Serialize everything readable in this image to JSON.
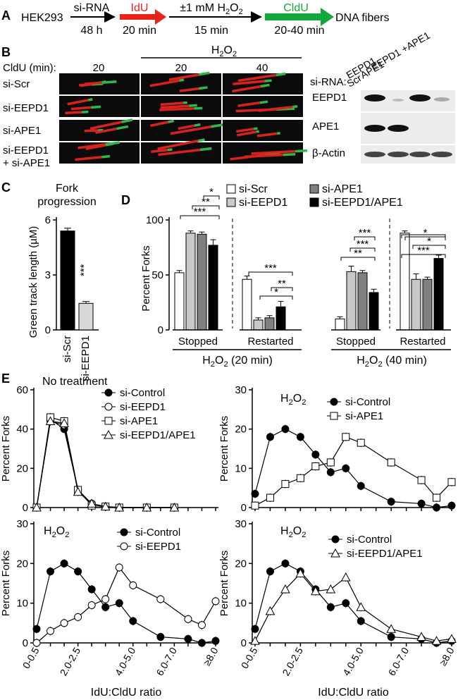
{
  "panelA": {
    "letter": "A",
    "cell_line": "HEK293",
    "steps": [
      {
        "label": "si-RNA",
        "time": "48 h",
        "color": "#000000"
      },
      {
        "label": "IdU",
        "time": "20 min",
        "color": "#e8231c"
      },
      {
        "label": "±1 mM H2O2",
        "time": "15 min",
        "color": "#000000"
      },
      {
        "label": "CldU",
        "time": "20-40 min",
        "color": "#14a83c"
      }
    ],
    "outcome": "DNA fibers"
  },
  "panelB": {
    "letter": "B",
    "cldu_label": "CldU (min):",
    "h2o2_header": "H2O2",
    "times": [
      "20",
      "20",
      "40"
    ],
    "rows": [
      "si-Scr",
      "si-EEPD1",
      "si-APE1",
      "si-EEPD1",
      "+ si-APE1"
    ],
    "blot": {
      "sirna_label": "si-RNA:",
      "lanes": [
        "Scr",
        "EEPD1",
        "APE1",
        "EEPD1 +APE1"
      ],
      "proteins": [
        "EEPD1",
        "APE1",
        "β-Actin"
      ]
    }
  },
  "panelC": {
    "letter": "C",
    "title_line1": "Fork",
    "title_line2": "progression",
    "ylabel": "Green track length (µM)",
    "yticks": [
      "0",
      "3",
      "6"
    ],
    "significance": "***",
    "chart_data": {
      "type": "bar",
      "categories": [
        "si-Scr",
        "si-EEPD1"
      ],
      "values": [
        5.4,
        1.45
      ],
      "errors": [
        0.15,
        0.1
      ],
      "colors": [
        "#000000",
        "#d8d8d8"
      ],
      "ylim": [
        0,
        6.3
      ]
    }
  },
  "panelD": {
    "letter": "D",
    "ylabel": "Percent Forks",
    "yticks": [
      "0",
      "50",
      "100"
    ],
    "group_labels": [
      "Stopped",
      "Restarted",
      "Stopped",
      "Restarted"
    ],
    "condition_labels": [
      "H2O2 (20 min)",
      "H2O2 (40 min)"
    ],
    "legend": [
      {
        "name": "si-Scr",
        "color": "#ffffff"
      },
      {
        "name": "si-EEPD1",
        "color": "#c8c8c8"
      },
      {
        "name": "si-APE1",
        "color": "#808080"
      },
      {
        "name": "si-EEPD1/APE1",
        "color": "#000000"
      }
    ],
    "chart_data": {
      "type": "bar",
      "groups": [
        "Stopped 20 min",
        "Restarted 20 min",
        "Stopped 40 min",
        "Restarted 40 min"
      ],
      "series": [
        {
          "name": "si-Scr",
          "values": [
            52,
            46,
            10,
            88
          ],
          "errors": [
            2,
            3,
            2,
            2
          ]
        },
        {
          "name": "si-EEPD1",
          "values": [
            88,
            9,
            53,
            46
          ],
          "errors": [
            2,
            2,
            5,
            5
          ]
        },
        {
          "name": "si-APE1",
          "values": [
            87,
            11,
            52,
            46
          ],
          "errors": [
            2,
            2,
            2,
            2
          ]
        },
        {
          "name": "si-EEPD1/APE1",
          "values": [
            77,
            21,
            34,
            65
          ],
          "errors": [
            5,
            5,
            3,
            3
          ]
        }
      ],
      "ylim": [
        0,
        105
      ],
      "significance_brackets": [
        "*",
        "**",
        "***",
        "***",
        "**",
        "*",
        "***",
        "***",
        "**",
        "*",
        "***",
        "*",
        "**"
      ]
    }
  },
  "panelE": {
    "letter": "E",
    "xlabel": "IdU:CldU ratio",
    "ylabel": "Percent Forks",
    "xtick_labels": [
      "0-0.5",
      "2.0-2.5",
      "4.0-5.0",
      "6.0-7.0",
      "≥8.0"
    ],
    "chart_data": [
      {
        "type": "line",
        "title": "No treatment",
        "ylim": [
          0,
          60
        ],
        "yticks": [
          "0",
          "20",
          "40",
          "60"
        ],
        "x": [
          1,
          2,
          3,
          4,
          5,
          6,
          7,
          8,
          9,
          10,
          11,
          12,
          13,
          14
        ],
        "series": [
          {
            "name": "si-Control",
            "marker": "filled-circle",
            "values": [
              0,
              45,
              40,
              9,
              2,
              0.5,
              0,
              null,
              0,
              null,
              0,
              null,
              null,
              null
            ]
          },
          {
            "name": "si-EEPD1",
            "marker": "open-circle",
            "values": [
              0,
              44,
              42,
              9,
              2,
              0.5,
              0,
              null,
              0,
              null,
              0,
              null,
              null,
              null
            ]
          },
          {
            "name": "si-APE1",
            "marker": "open-square",
            "values": [
              0,
              46,
              44,
              9,
              1,
              0.5,
              0,
              null,
              0,
              null,
              0,
              null,
              null,
              null
            ]
          },
          {
            "name": "si-EEPD1/APE1",
            "marker": "open-triangle",
            "values": [
              0,
              44,
              43,
              8,
              2,
              0.5,
              0,
              null,
              0,
              null,
              0,
              null,
              null,
              null
            ]
          }
        ]
      },
      {
        "type": "line",
        "title": "H2O2",
        "ylim": [
          0,
          30
        ],
        "yticks": [
          "0",
          "10",
          "20",
          "30"
        ],
        "x": [
          1,
          2,
          3,
          4,
          5,
          6,
          7,
          8,
          9,
          10,
          11,
          12,
          13,
          14
        ],
        "series": [
          {
            "name": "si-Control",
            "marker": "filled-circle",
            "values": [
              3.5,
              18,
              20,
              18,
              13.5,
              9,
              10,
              5.5,
              null,
              1.5,
              null,
              1,
              0,
              0.5
            ]
          },
          {
            "name": "si-APE1",
            "marker": "open-square",
            "values": [
              0.5,
              2.5,
              6,
              7.5,
              10.5,
              11.5,
              18,
              16.5,
              null,
              11.5,
              null,
              7,
              2.5,
              6.5
            ]
          }
        ]
      },
      {
        "type": "line",
        "title": "H2O2",
        "ylim": [
          0,
          30
        ],
        "yticks": [
          "0",
          "10",
          "20",
          "30"
        ],
        "x": [
          1,
          2,
          3,
          4,
          5,
          6,
          7,
          8,
          9,
          10,
          11,
          12,
          13,
          14
        ],
        "series": [
          {
            "name": "si-Control",
            "marker": "filled-circle",
            "values": [
              3.5,
              18,
              20,
              18,
              13.5,
              9,
              10,
              5.5,
              null,
              1.5,
              null,
              1,
              0,
              0.5
            ]
          },
          {
            "name": "si-EEPD1",
            "marker": "open-circle",
            "values": [
              0,
              3,
              5,
              6.5,
              9.5,
              11,
              19,
              14.5,
              null,
              11,
              null,
              6,
              4.5,
              10.5
            ]
          }
        ]
      },
      {
        "type": "line",
        "title": "H2O2",
        "ylim": [
          0,
          30
        ],
        "yticks": [
          "0",
          "10",
          "20",
          "30"
        ],
        "x": [
          1,
          2,
          3,
          4,
          5,
          6,
          7,
          8,
          9,
          10,
          11,
          12,
          13,
          14
        ],
        "series": [
          {
            "name": "si-Control",
            "marker": "filled-circle",
            "values": [
              3.5,
              18,
              20,
              18,
              13.5,
              9,
              10,
              5.5,
              null,
              1.5,
              null,
              1,
              0,
              0.5
            ]
          },
          {
            "name": "si-EEPD1/APE1",
            "marker": "open-triangle",
            "values": [
              0.5,
              8,
              13.5,
              17.5,
              13,
              13.5,
              16.5,
              9,
              null,
              3.5,
              null,
              1.5,
              0.5,
              1
            ]
          }
        ]
      }
    ]
  }
}
